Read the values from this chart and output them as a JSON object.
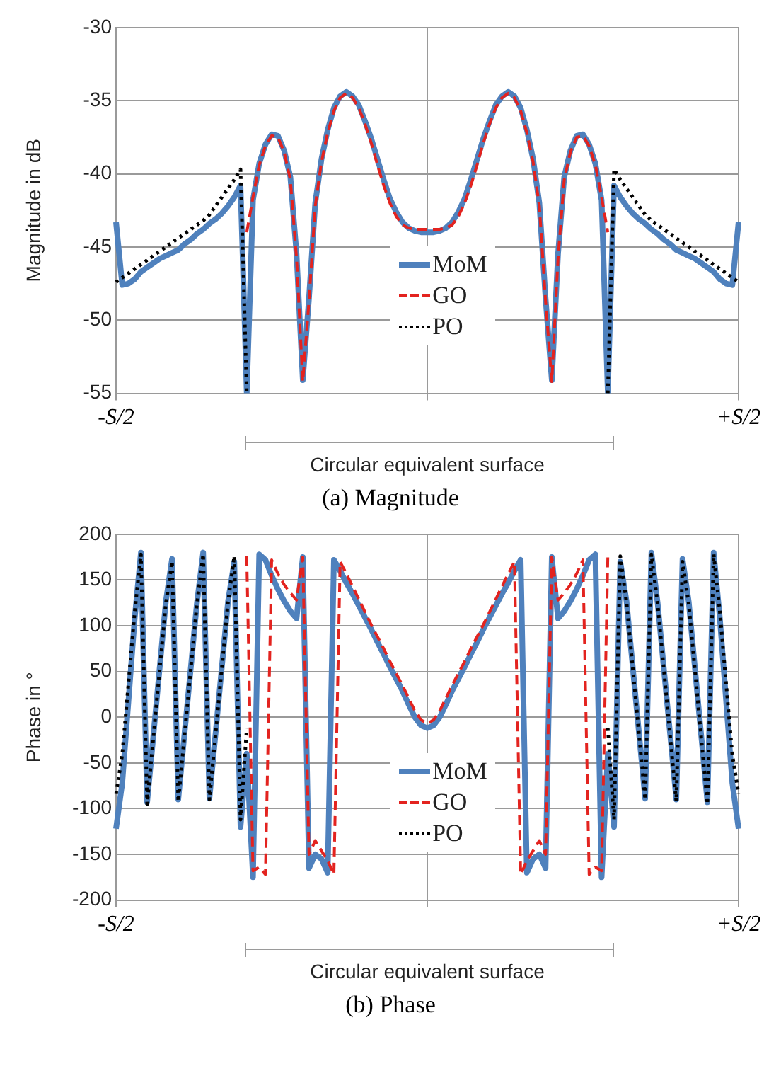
{
  "chart_data": [
    {
      "type": "line",
      "title": "(a) Magnitude",
      "ylabel": "Magnitude in dB",
      "annotations": [
        "Circular equivalent surface"
      ],
      "categories": [
        "-S/2",
        null,
        null,
        null,
        null,
        null,
        null,
        null,
        null,
        null,
        null,
        null,
        null,
        null,
        null,
        null,
        null,
        null,
        null,
        null,
        null,
        null,
        null,
        null,
        null,
        null,
        null,
        null,
        null,
        null,
        null,
        null,
        null,
        null,
        null,
        null,
        null,
        null,
        null,
        null,
        null,
        null,
        null,
        null,
        null,
        null,
        null,
        null,
        null,
        null,
        null,
        null,
        null,
        null,
        null,
        null,
        null,
        null,
        null,
        null,
        null,
        null,
        null,
        null,
        null,
        null,
        null,
        null,
        null,
        null,
        null,
        null,
        null,
        null,
        null,
        null,
        null,
        null,
        null,
        null,
        null,
        null,
        null,
        null,
        null,
        null,
        null,
        null,
        null,
        null,
        null,
        null,
        null,
        null,
        null,
        null,
        null,
        null,
        null,
        null,
        "+S/2"
      ],
      "ylim": [
        -55,
        -30
      ],
      "yticks": [
        -55,
        -50,
        -45,
        -40,
        -35,
        -30
      ],
      "grid": true,
      "legend": "bottom",
      "series": [
        {
          "name": "MoM",
          "color": "#4f81bd",
          "line_style": "solid",
          "values": [
            -43.3,
            -47.6,
            -47.5,
            -47.2,
            -46.7,
            -46.4,
            -46.1,
            -45.8,
            -45.6,
            -45.4,
            -45.2,
            -44.8,
            -44.5,
            -44.1,
            -43.8,
            -43.4,
            -43.1,
            -42.7,
            -42.2,
            -41.6,
            -40.8,
            -55,
            -41.8,
            -39.3,
            -38,
            -37.3,
            -37.4,
            -38.4,
            -40.2,
            -45.5,
            -54.1,
            -48.5,
            -42,
            -39,
            -37,
            -35.5,
            -34.7,
            -34.4,
            -34.7,
            -35.3,
            -36.4,
            -37.6,
            -39,
            -40.4,
            -41.7,
            -42.6,
            -43.3,
            -43.7,
            -43.9,
            -44,
            -44,
            -44,
            -43.9,
            -43.7,
            -43.3,
            -42.6,
            -41.7,
            -40.4,
            -39,
            -37.6,
            -36.4,
            -35.3,
            -34.7,
            -34.4,
            -34.7,
            -35.5,
            -37,
            -39,
            -42,
            -48.5,
            -54.1,
            -45.5,
            -40.2,
            -38.4,
            -37.4,
            -37.3,
            -38,
            -39.3,
            -41.8,
            -55,
            -40.8,
            -41.6,
            -42.2,
            -42.7,
            -43.1,
            -43.4,
            -43.8,
            -44.1,
            -44.5,
            -44.8,
            -45.2,
            -45.4,
            -45.6,
            -45.8,
            -46.1,
            -46.4,
            -46.7,
            -47.2,
            -47.5,
            -47.6,
            -43.3
          ]
        },
        {
          "name": "GO",
          "color": "#e3231f",
          "line_style": "dashed",
          "values": [
            null,
            null,
            null,
            null,
            null,
            null,
            null,
            null,
            null,
            null,
            null,
            null,
            null,
            null,
            null,
            null,
            null,
            null,
            null,
            null,
            null,
            -44,
            -41.6,
            -39.4,
            -38.1,
            -37.4,
            -37.5,
            -38.5,
            -40.4,
            -45.8,
            -54.2,
            -48.7,
            -42.2,
            -39.2,
            -37.2,
            -35.7,
            -34.8,
            -34.5,
            -34.8,
            -35.5,
            -36.6,
            -37.9,
            -39.4,
            -40.8,
            -42,
            -42.9,
            -43.5,
            -43.7,
            -43.8,
            -43.8,
            -43.8,
            -43.8,
            -43.8,
            -43.7,
            -43.5,
            -42.9,
            -42,
            -40.8,
            -39.4,
            -37.9,
            -36.6,
            -35.5,
            -34.8,
            -34.5,
            -34.8,
            -35.7,
            -37.2,
            -39.2,
            -42.2,
            -48.7,
            -54.2,
            -45.8,
            -40.4,
            -38.5,
            -37.5,
            -37.4,
            -38.1,
            -39.4,
            -41.6,
            -44,
            null,
            null,
            null,
            null,
            null,
            null,
            null,
            null,
            null,
            null,
            null,
            null,
            null,
            null,
            null,
            null,
            null,
            null,
            null,
            null,
            null
          ]
        },
        {
          "name": "PO",
          "color": "#000000",
          "line_style": "dotted",
          "values": [
            -47.4,
            -47.1,
            -46.8,
            -46.5,
            -46.2,
            -45.9,
            -45.6,
            -45.3,
            -45,
            -44.7,
            -44.4,
            -44.1,
            -43.8,
            -43.5,
            -43.2,
            -42.8,
            -42.2,
            -41.6,
            -41,
            -40.4,
            -39.7,
            -55,
            null,
            null,
            null,
            null,
            null,
            null,
            null,
            null,
            null,
            null,
            null,
            null,
            null,
            null,
            null,
            null,
            null,
            null,
            null,
            null,
            null,
            null,
            null,
            null,
            null,
            null,
            null,
            null,
            null,
            null,
            null,
            null,
            null,
            null,
            null,
            null,
            null,
            null,
            null,
            null,
            null,
            null,
            null,
            null,
            null,
            null,
            null,
            null,
            null,
            null,
            null,
            null,
            null,
            null,
            null,
            null,
            null,
            -55,
            -39.7,
            -40.4,
            -41,
            -41.6,
            -42.2,
            -42.8,
            -43.2,
            -43.5,
            -43.8,
            -44.1,
            -44.4,
            -44.7,
            -45,
            -45.3,
            -45.6,
            -45.9,
            -46.2,
            -46.5,
            -46.8,
            -47.1,
            -47.4
          ]
        }
      ]
    },
    {
      "type": "line",
      "title": "(b) Phase",
      "ylabel": "Phase in °",
      "annotations": [
        "Circular equivalent surface"
      ],
      "categories": [
        "-S/2",
        null,
        null,
        null,
        null,
        null,
        null,
        null,
        null,
        null,
        null,
        null,
        null,
        null,
        null,
        null,
        null,
        null,
        null,
        null,
        null,
        null,
        null,
        null,
        null,
        null,
        null,
        null,
        null,
        null,
        null,
        null,
        null,
        null,
        null,
        null,
        null,
        null,
        null,
        null,
        null,
        null,
        null,
        null,
        null,
        null,
        null,
        null,
        null,
        null,
        null,
        null,
        null,
        null,
        null,
        null,
        null,
        null,
        null,
        null,
        null,
        null,
        null,
        null,
        null,
        null,
        null,
        null,
        null,
        null,
        null,
        null,
        null,
        null,
        null,
        null,
        null,
        null,
        null,
        null,
        null,
        null,
        null,
        null,
        null,
        null,
        null,
        null,
        null,
        null,
        null,
        null,
        null,
        null,
        null,
        null,
        null,
        null,
        null,
        null,
        "+S/2"
      ],
      "ylim": [
        -200,
        200
      ],
      "yticks": [
        -200,
        -150,
        -100,
        -50,
        0,
        50,
        100,
        150,
        200
      ],
      "grid": true,
      "legend": "bottom",
      "series": [
        {
          "name": "MoM",
          "color": "#4f81bd",
          "line_style": "solid",
          "values": [
            -122,
            -72,
            18,
            108,
            180,
            -93,
            -20,
            53,
            126,
            173,
            -90,
            -18,
            53,
            125,
            180,
            -89,
            -17,
            55,
            127,
            170,
            -120,
            -40,
            -175,
            178,
            172,
            155,
            140,
            127,
            116,
            108,
            175,
            -165,
            -150,
            -155,
            -170,
            172,
            160,
            147,
            135,
            122,
            109,
            96,
            82,
            69,
            55,
            42,
            29,
            14,
            0,
            -9,
            -12,
            -9,
            0,
            14,
            29,
            42,
            55,
            69,
            82,
            96,
            109,
            122,
            135,
            147,
            160,
            172,
            -170,
            -155,
            -150,
            -165,
            175,
            108,
            116,
            127,
            140,
            155,
            172,
            178,
            -175,
            -40,
            -120,
            170,
            127,
            55,
            -17,
            -89,
            180,
            125,
            53,
            -18,
            -90,
            173,
            126,
            53,
            -20,
            -93,
            180,
            108,
            18,
            -72,
            -122
          ]
        },
        {
          "name": "GO",
          "color": "#e3231f",
          "line_style": "dashed",
          "values": [
            null,
            null,
            null,
            null,
            null,
            null,
            null,
            null,
            null,
            null,
            null,
            null,
            null,
            null,
            null,
            null,
            null,
            null,
            null,
            null,
            null,
            176,
            -168,
            -164,
            -172,
            172,
            157,
            145,
            136,
            128,
            175,
            -150,
            -135,
            -146,
            -157,
            -172,
            170,
            157,
            143,
            129,
            115,
            101,
            88,
            75,
            61,
            48,
            35,
            21,
            7,
            -3,
            -7,
            -3,
            7,
            21,
            35,
            48,
            61,
            75,
            88,
            101,
            115,
            129,
            143,
            157,
            170,
            -172,
            -157,
            -146,
            -135,
            -150,
            175,
            128,
            136,
            145,
            157,
            172,
            -172,
            -164,
            -168,
            176,
            null,
            null,
            null,
            null,
            null,
            null,
            null,
            null,
            null,
            null,
            null,
            null,
            null,
            null,
            null,
            null,
            null,
            null,
            null,
            null,
            null
          ]
        },
        {
          "name": "PO",
          "color": "#000000",
          "line_style": "dotted",
          "values": [
            -84,
            -41,
            37,
            115,
            178,
            -95,
            -22,
            51,
            124,
            170,
            -92,
            -20,
            52,
            124,
            178,
            -90,
            -18,
            54,
            126,
            176,
            -112,
            -12,
            null,
            null,
            null,
            null,
            null,
            null,
            null,
            null,
            null,
            null,
            null,
            null,
            null,
            null,
            null,
            null,
            null,
            null,
            null,
            null,
            null,
            null,
            null,
            null,
            null,
            null,
            null,
            null,
            null,
            null,
            null,
            null,
            null,
            null,
            null,
            null,
            null,
            null,
            null,
            null,
            null,
            null,
            null,
            null,
            null,
            null,
            null,
            null,
            null,
            null,
            null,
            null,
            null,
            null,
            null,
            null,
            null,
            -12,
            -112,
            176,
            126,
            54,
            -18,
            -90,
            178,
            124,
            52,
            -20,
            -92,
            170,
            124,
            51,
            -22,
            -95,
            178,
            115,
            37,
            -41,
            -84
          ]
        }
      ]
    }
  ]
}
